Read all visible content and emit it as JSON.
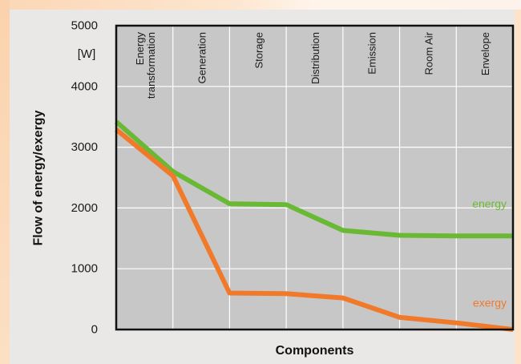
{
  "chart_data": {
    "type": "line",
    "title": "",
    "xlabel": "Components",
    "ylabel": "Flow of energy/exergy",
    "yunit": "[W]",
    "ylim": [
      0,
      5000
    ],
    "yticks": [
      0,
      1000,
      2000,
      3000,
      4000,
      5000
    ],
    "grid": true,
    "categories": [
      [
        "Energy",
        "transformation"
      ],
      [
        "Generation"
      ],
      [
        "Storage"
      ],
      [
        "Distribution"
      ],
      [
        "Emission"
      ],
      [
        "Room Air"
      ],
      [
        "Envelope"
      ]
    ],
    "x_boundaries": [
      0,
      1,
      2,
      3,
      4,
      5,
      6,
      7
    ],
    "series": [
      {
        "name": "energy",
        "color": "#6ab935",
        "x": [
          0,
          1,
          2,
          3,
          4,
          5,
          6,
          7
        ],
        "values": [
          3420,
          2600,
          2070,
          2055,
          1630,
          1550,
          1540,
          1540
        ]
      },
      {
        "name": "exergy",
        "color": "#f07a2a",
        "x": [
          0,
          1,
          2,
          3,
          4,
          5,
          6,
          7
        ],
        "values": [
          3290,
          2530,
          600,
          590,
          520,
          200,
          110,
          0
        ]
      }
    ]
  }
}
